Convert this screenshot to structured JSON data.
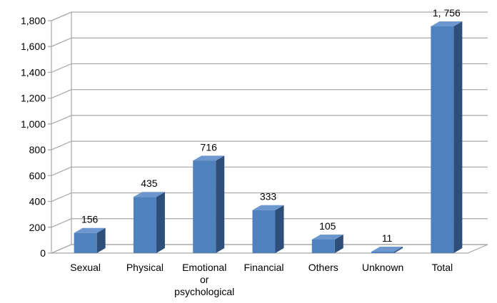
{
  "chart_data": {
    "type": "bar3d",
    "categories": [
      "Sexual",
      "Physical",
      "Emotional or psychological",
      "Financial",
      "Others",
      "Unknown",
      "Total"
    ],
    "values": [
      156,
      435,
      716,
      333,
      105,
      11,
      1756
    ],
    "value_labels": [
      "156",
      "435",
      "716",
      "333",
      "105",
      "11",
      "1, 756"
    ],
    "color": "#4f81bd",
    "ylim": [
      0,
      1800
    ],
    "yticks": [
      0,
      200,
      400,
      600,
      800,
      {
        "value": 1000,
        "label": "1,000"
      },
      {
        "value": 1200,
        "label": "1,200"
      },
      {
        "value": 1400,
        "label": "1,400"
      },
      {
        "value": 1600,
        "label": "1,600"
      },
      {
        "value": 1800,
        "label": "1,800"
      }
    ],
    "grid": true
  }
}
